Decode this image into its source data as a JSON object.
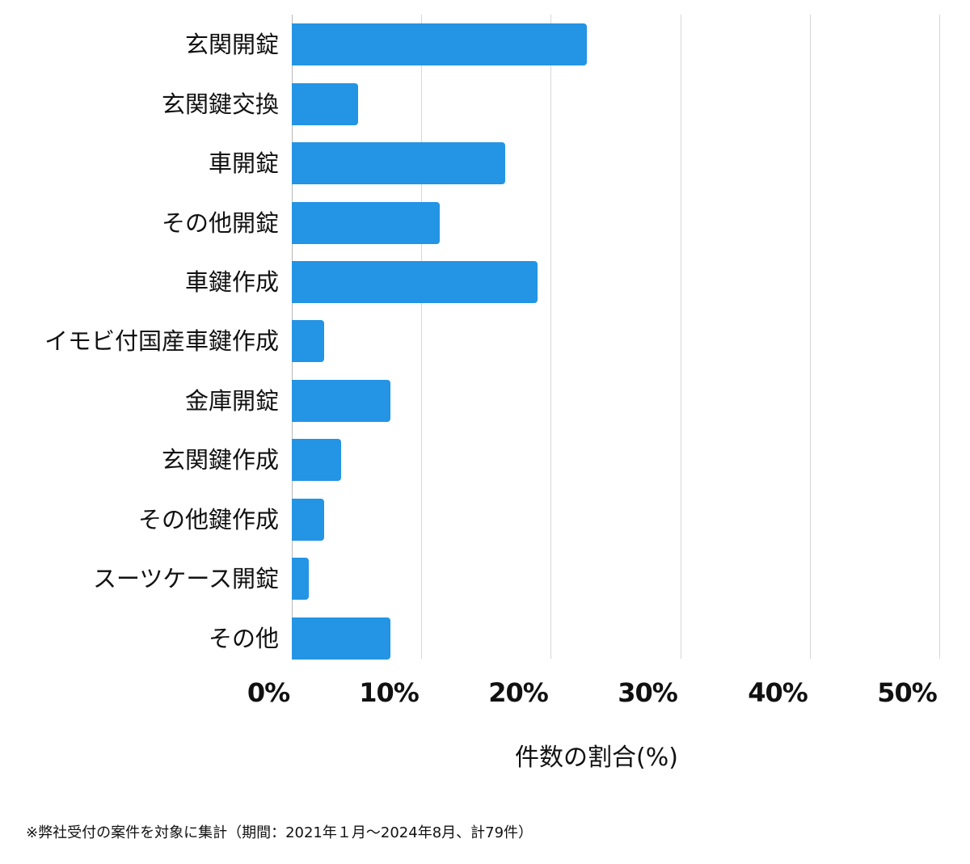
{
  "chart_data": {
    "type": "bar",
    "orientation": "horizontal",
    "title": "",
    "categories": [
      "玄関開錠",
      "玄関鍵交換",
      "車開錠",
      "その他開錠",
      "車鍵作成",
      "イモビ付国産車鍵作成",
      "金庫開錠",
      "玄関鍵作成",
      "その他鍵作成",
      "スーツケース開錠",
      "その他"
    ],
    "values": [
      22.8,
      5.1,
      16.5,
      11.4,
      19.0,
      2.5,
      7.6,
      3.8,
      2.5,
      1.3,
      7.6
    ],
    "counts_estimated": [
      18,
      4,
      13,
      9,
      15,
      2,
      6,
      3,
      2,
      1,
      6
    ],
    "xlabel": "件数の割合(%)",
    "ylabel": "",
    "xlim": [
      0,
      50
    ],
    "xticks": [
      "0%",
      "10%",
      "20%",
      "30%",
      "40%",
      "50%"
    ],
    "grid": true,
    "legend": null,
    "bar_color": "#2494e4",
    "footnote": "※弊社受付の案件を対象に集計（期間：2021年１月～2024年8月、計79件）"
  },
  "labels": {
    "cat0": "玄関開錠",
    "cat1": "玄関鍵交換",
    "cat2": "車開錠",
    "cat3": "その他開錠",
    "cat4": "車鍵作成",
    "cat5": "イモビ付国産車鍵作成",
    "cat6": "金庫開錠",
    "cat7": "玄関鍵作成",
    "cat8": "その他鍵作成",
    "cat9": "スーツケース開錠",
    "cat10": "その他",
    "tick0": "0%",
    "tick1": "10%",
    "tick2": "20%",
    "tick3": "30%",
    "tick4": "40%",
    "tick5": "50%",
    "xlabel": "件数の割合(%)",
    "footnote": "※弊社受付の案件を対象に集計（期間：2021年１月～2024年8月、計79件）"
  }
}
